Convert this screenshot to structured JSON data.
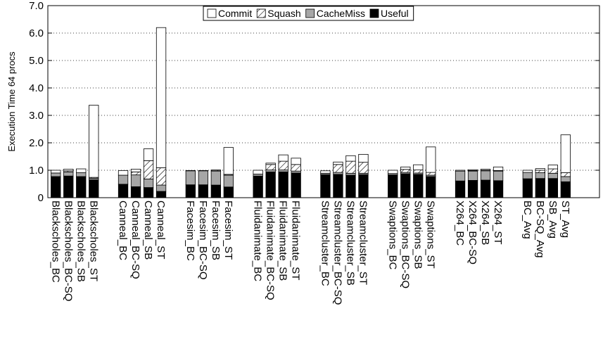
{
  "chart_data": {
    "type": "bar",
    "stacked": true,
    "title": "",
    "xlabel": "",
    "ylabel": "Execution Time 64 procs",
    "ylim": [
      0,
      7
    ],
    "yticks": [
      "0",
      "1.0",
      "2.0",
      "3.0",
      "4.0",
      "5.0",
      "6.0",
      "7.0"
    ],
    "grid": true,
    "legend_position": "top-center",
    "legend": [
      "Commit",
      "Squash",
      "CacheMiss",
      "Useful"
    ],
    "categories": [
      "Blackscholes_BC",
      "Blackscholes_BC-SQ",
      "Blackscholes_SB",
      "Blackscholes_ST",
      "Canneal_BC",
      "Canneal_BC-SQ",
      "Canneal_SB",
      "Canneal_ST",
      "Facesim_BC",
      "Facesim_BC-SQ",
      "Facesim_SB",
      "Facesim_ST",
      "Fluidanimate_BC",
      "Fluidanimate_BC-SQ",
      "Fluidanimate_SB",
      "Fluidanimate_ST",
      "Streamcluster_BC",
      "Streamcluster_BC-SQ",
      "Streamcluster_SB",
      "Streamcluster_ST",
      "Swaptions_BC",
      "Swaptions_BC-SQ",
      "Swaptions_SB",
      "Swaptions_ST",
      "X264_BC",
      "X264_BC-SQ",
      "X264_SB",
      "X264_ST",
      "BC_Avg",
      "BC-SQ_Avg",
      "SB_Avg",
      "ST_Avg"
    ],
    "series": [
      {
        "name": "Useful",
        "values": [
          0.77,
          0.79,
          0.77,
          0.65,
          0.49,
          0.4,
          0.37,
          0.23,
          0.47,
          0.47,
          0.46,
          0.39,
          0.79,
          0.94,
          0.94,
          0.9,
          0.84,
          0.85,
          0.82,
          0.84,
          0.83,
          0.87,
          0.85,
          0.77,
          0.61,
          0.63,
          0.64,
          0.62,
          0.69,
          0.7,
          0.7,
          0.58
        ]
      },
      {
        "name": "CacheMiss",
        "values": [
          0.13,
          0.15,
          0.14,
          0.06,
          0.33,
          0.43,
          0.31,
          0.23,
          0.51,
          0.51,
          0.51,
          0.43,
          0.07,
          0.07,
          0.07,
          0.07,
          0.05,
          0.07,
          0.07,
          0.05,
          0.05,
          0.05,
          0.05,
          0.05,
          0.36,
          0.34,
          0.34,
          0.35,
          0.23,
          0.21,
          0.19,
          0.19
        ]
      },
      {
        "name": "Squash",
        "values": [
          0.0,
          0.04,
          0.0,
          0.03,
          0.0,
          0.11,
          0.67,
          0.63,
          0.0,
          0.0,
          0.03,
          0.03,
          0.0,
          0.2,
          0.32,
          0.24,
          0.0,
          0.29,
          0.44,
          0.4,
          0.0,
          0.11,
          0.11,
          0.1,
          0.0,
          0.02,
          0.02,
          0.02,
          0.0,
          0.09,
          0.16,
          0.14
        ]
      },
      {
        "name": "Commit",
        "values": [
          0.1,
          0.06,
          0.14,
          2.63,
          0.17,
          0.1,
          0.43,
          5.11,
          0.01,
          0.01,
          0.01,
          0.98,
          0.14,
          0.05,
          0.23,
          0.23,
          0.09,
          0.09,
          0.2,
          0.29,
          0.12,
          0.09,
          0.19,
          0.93,
          0.03,
          0.03,
          0.04,
          0.13,
          0.08,
          0.06,
          0.14,
          1.38
        ]
      }
    ]
  }
}
